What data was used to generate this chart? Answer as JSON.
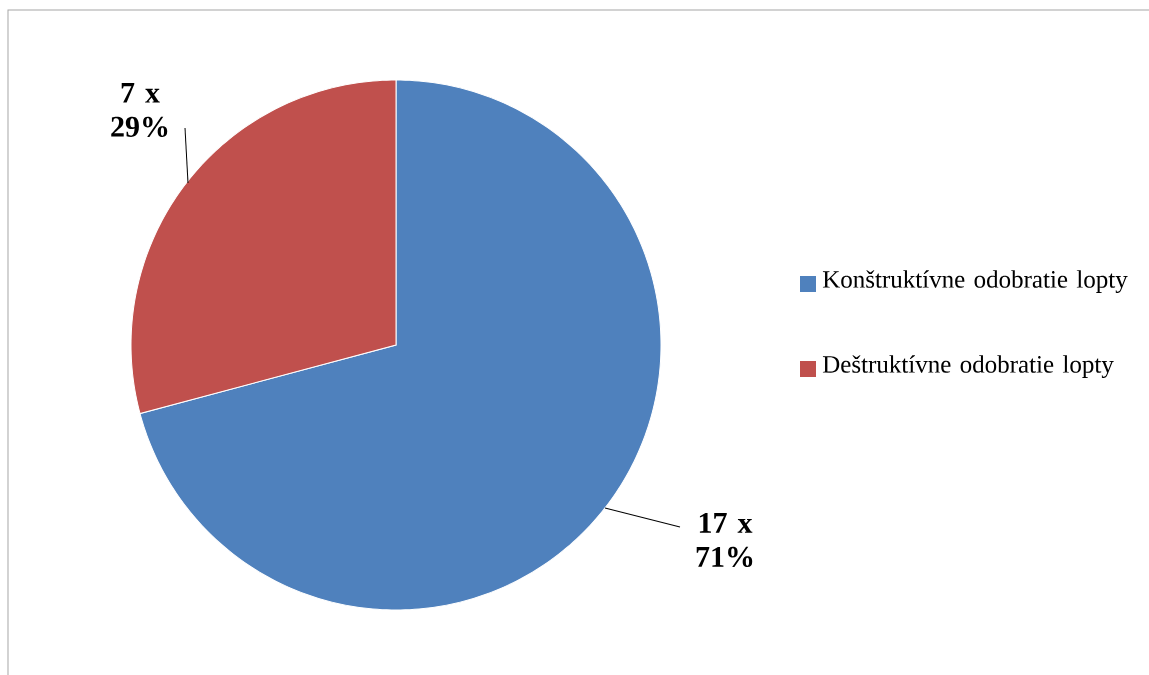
{
  "chart_data": {
    "type": "pie",
    "categories": [
      "Konštruktívne odobratie lopty",
      "Deštruktívne odobratie lopty"
    ],
    "values": [
      17,
      7
    ],
    "colors": [
      "#4f81bd",
      "#c0504d"
    ],
    "value_labels": [
      "17 x 71%",
      "7 x 29%"
    ],
    "legend": "right"
  }
}
